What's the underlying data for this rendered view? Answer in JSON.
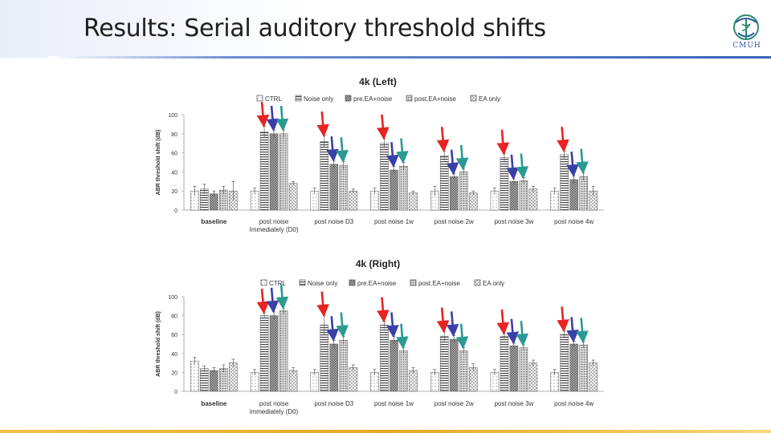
{
  "slide": {
    "title": "Results: Serial auditory threshold shifts",
    "logo_text": "CMUH",
    "colors": {
      "accent": "#3a63b8",
      "bottom": "#e8a821"
    }
  },
  "chart_data": [
    {
      "type": "bar",
      "title": "4k (Left)",
      "ylabel": "ABR threshold shift (dB)",
      "xlabel": "",
      "ylim": [
        0,
        100
      ],
      "yticks": [
        0,
        20,
        40,
        60,
        80,
        100
      ],
      "categories": [
        "baseline",
        "post noise Immediately (D0)",
        "post noise D3",
        "post noise 1w",
        "post noise 2w",
        "post noise 3w",
        "post noise 4w"
      ],
      "category_lines": [
        [
          "baseline"
        ],
        [
          "post noise",
          "Immediately (D0)"
        ],
        [
          "post noise D3"
        ],
        [
          "post noise 1w"
        ],
        [
          "post noise 2w"
        ],
        [
          "post noise 3w"
        ],
        [
          "post noise 4w"
        ]
      ],
      "legend": [
        "CTRL",
        "Noise only",
        "pre.EA+noise",
        "post.EA+noise",
        "EA only"
      ],
      "series": [
        {
          "name": "CTRL",
          "values": [
            20,
            20,
            20,
            20,
            20,
            20,
            20
          ],
          "errors": [
            5,
            3,
            3,
            3,
            5,
            3,
            3
          ]
        },
        {
          "name": "Noise only",
          "values": [
            22,
            82,
            72,
            70,
            57,
            55,
            58
          ],
          "errors": [
            5,
            6,
            6,
            5,
            5,
            4,
            4
          ]
        },
        {
          "name": "pre.EA+noise",
          "values": [
            17,
            80,
            48,
            42,
            35,
            30,
            32
          ],
          "errors": [
            3,
            4,
            4,
            4,
            3,
            3,
            4
          ]
        },
        {
          "name": "post.EA+noise",
          "values": [
            21,
            80,
            47,
            46,
            40,
            31,
            35
          ],
          "errors": [
            4,
            4,
            4,
            4,
            3,
            3,
            4
          ]
        },
        {
          "name": "EA only",
          "values": [
            20,
            28,
            20,
            18,
            18,
            22,
            20
          ],
          "errors": [
            10,
            2,
            2,
            2,
            2,
            3,
            5
          ]
        }
      ],
      "arrow_colors": [
        "#e82323",
        "#3b3fa8",
        "#2a9a93"
      ]
    },
    {
      "type": "bar",
      "title": "4k (Right)",
      "ylabel": "ABR threshold shift (dB)",
      "xlabel": "",
      "ylim": [
        0,
        100
      ],
      "yticks": [
        0,
        20,
        40,
        60,
        80,
        100
      ],
      "categories": [
        "baseline",
        "post noise immediately (D0)",
        "post noise D3",
        "post noise 1w",
        "post noise 2w",
        "post noise 3w",
        "post noise 4w"
      ],
      "category_lines": [
        [
          "baseline"
        ],
        [
          "post noise",
          "immediately (D0)"
        ],
        [
          "post noise D3"
        ],
        [
          "post noise 1w"
        ],
        [
          "post noise 2w"
        ],
        [
          "post noise 3w"
        ],
        [
          "post noise 4w"
        ]
      ],
      "legend": [
        "CTRL",
        "Noise only",
        "pre.EA+noise",
        "post.EA+noise",
        "EA only"
      ],
      "series": [
        {
          "name": "CTRL",
          "values": [
            32,
            20,
            20,
            20,
            20,
            20,
            20
          ],
          "errors": [
            4,
            3,
            3,
            3,
            3,
            3,
            3
          ]
        },
        {
          "name": "Noise only",
          "values": [
            24,
            80,
            70,
            70,
            58,
            58,
            60
          ],
          "errors": [
            3,
            3,
            10,
            4,
            5,
            3,
            4
          ]
        },
        {
          "name": "pre.EA+noise",
          "values": [
            22,
            80,
            50,
            54,
            55,
            48,
            50
          ],
          "errors": [
            3,
            4,
            4,
            4,
            4,
            3,
            3
          ]
        },
        {
          "name": "post.EA+noise",
          "values": [
            24,
            85,
            54,
            43,
            43,
            46,
            49
          ],
          "errors": [
            4,
            3,
            4,
            3,
            3,
            3,
            3
          ]
        },
        {
          "name": "EA only",
          "values": [
            30,
            22,
            25,
            22,
            25,
            30,
            30
          ],
          "errors": [
            4,
            3,
            3,
            3,
            4,
            3,
            3
          ]
        }
      ],
      "arrow_colors": [
        "#e82323",
        "#3b3fa8",
        "#2a9a93"
      ]
    }
  ]
}
